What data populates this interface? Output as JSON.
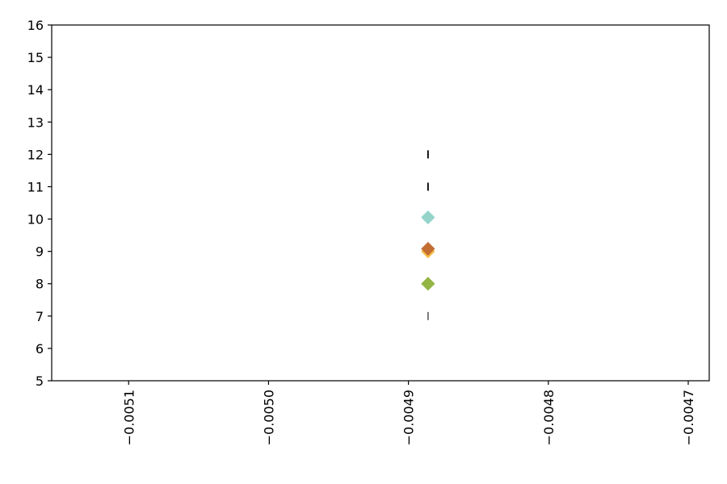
{
  "chart_data": {
    "type": "scatter",
    "title": "",
    "xlabel": "",
    "ylabel": "",
    "xlim": [
      -0.005155,
      -0.004685
    ],
    "ylim": [
      5,
      16
    ],
    "xticks": [
      -0.0051,
      -0.005,
      -0.0049,
      -0.0048,
      -0.0047
    ],
    "xtick_labels": [
      "−0.0051",
      "−0.0050",
      "−0.0049",
      "−0.0048",
      "−0.0047"
    ],
    "yticks": [
      5,
      6,
      7,
      8,
      9,
      10,
      11,
      12,
      13,
      14,
      15,
      16
    ],
    "ytick_labels": [
      "5",
      "6",
      "7",
      "8",
      "9",
      "10",
      "11",
      "12",
      "13",
      "14",
      "15",
      "16"
    ],
    "grid": false,
    "series": [
      {
        "marker": "vline",
        "color": "#111111",
        "points": [
          {
            "x": -0.004886,
            "y": 12
          }
        ]
      },
      {
        "marker": "vline",
        "color": "#111111",
        "points": [
          {
            "x": -0.004886,
            "y": 11
          }
        ]
      },
      {
        "marker": "diamond",
        "color": "#8fd3c8",
        "points": [
          {
            "x": -0.004886,
            "y": 10.05
          }
        ]
      },
      {
        "marker": "diamond",
        "color": "#f5b83d",
        "points": [
          {
            "x": -0.004886,
            "y": 9.0
          }
        ]
      },
      {
        "marker": "diamond",
        "color": "#c0692f",
        "points": [
          {
            "x": -0.004886,
            "y": 9.08
          }
        ]
      },
      {
        "marker": "diamond",
        "color": "#8fb23a",
        "points": [
          {
            "x": -0.004886,
            "y": 8.0
          }
        ]
      },
      {
        "marker": "vline",
        "color": "#777777",
        "points": [
          {
            "x": -0.004886,
            "y": 7
          }
        ]
      }
    ]
  }
}
